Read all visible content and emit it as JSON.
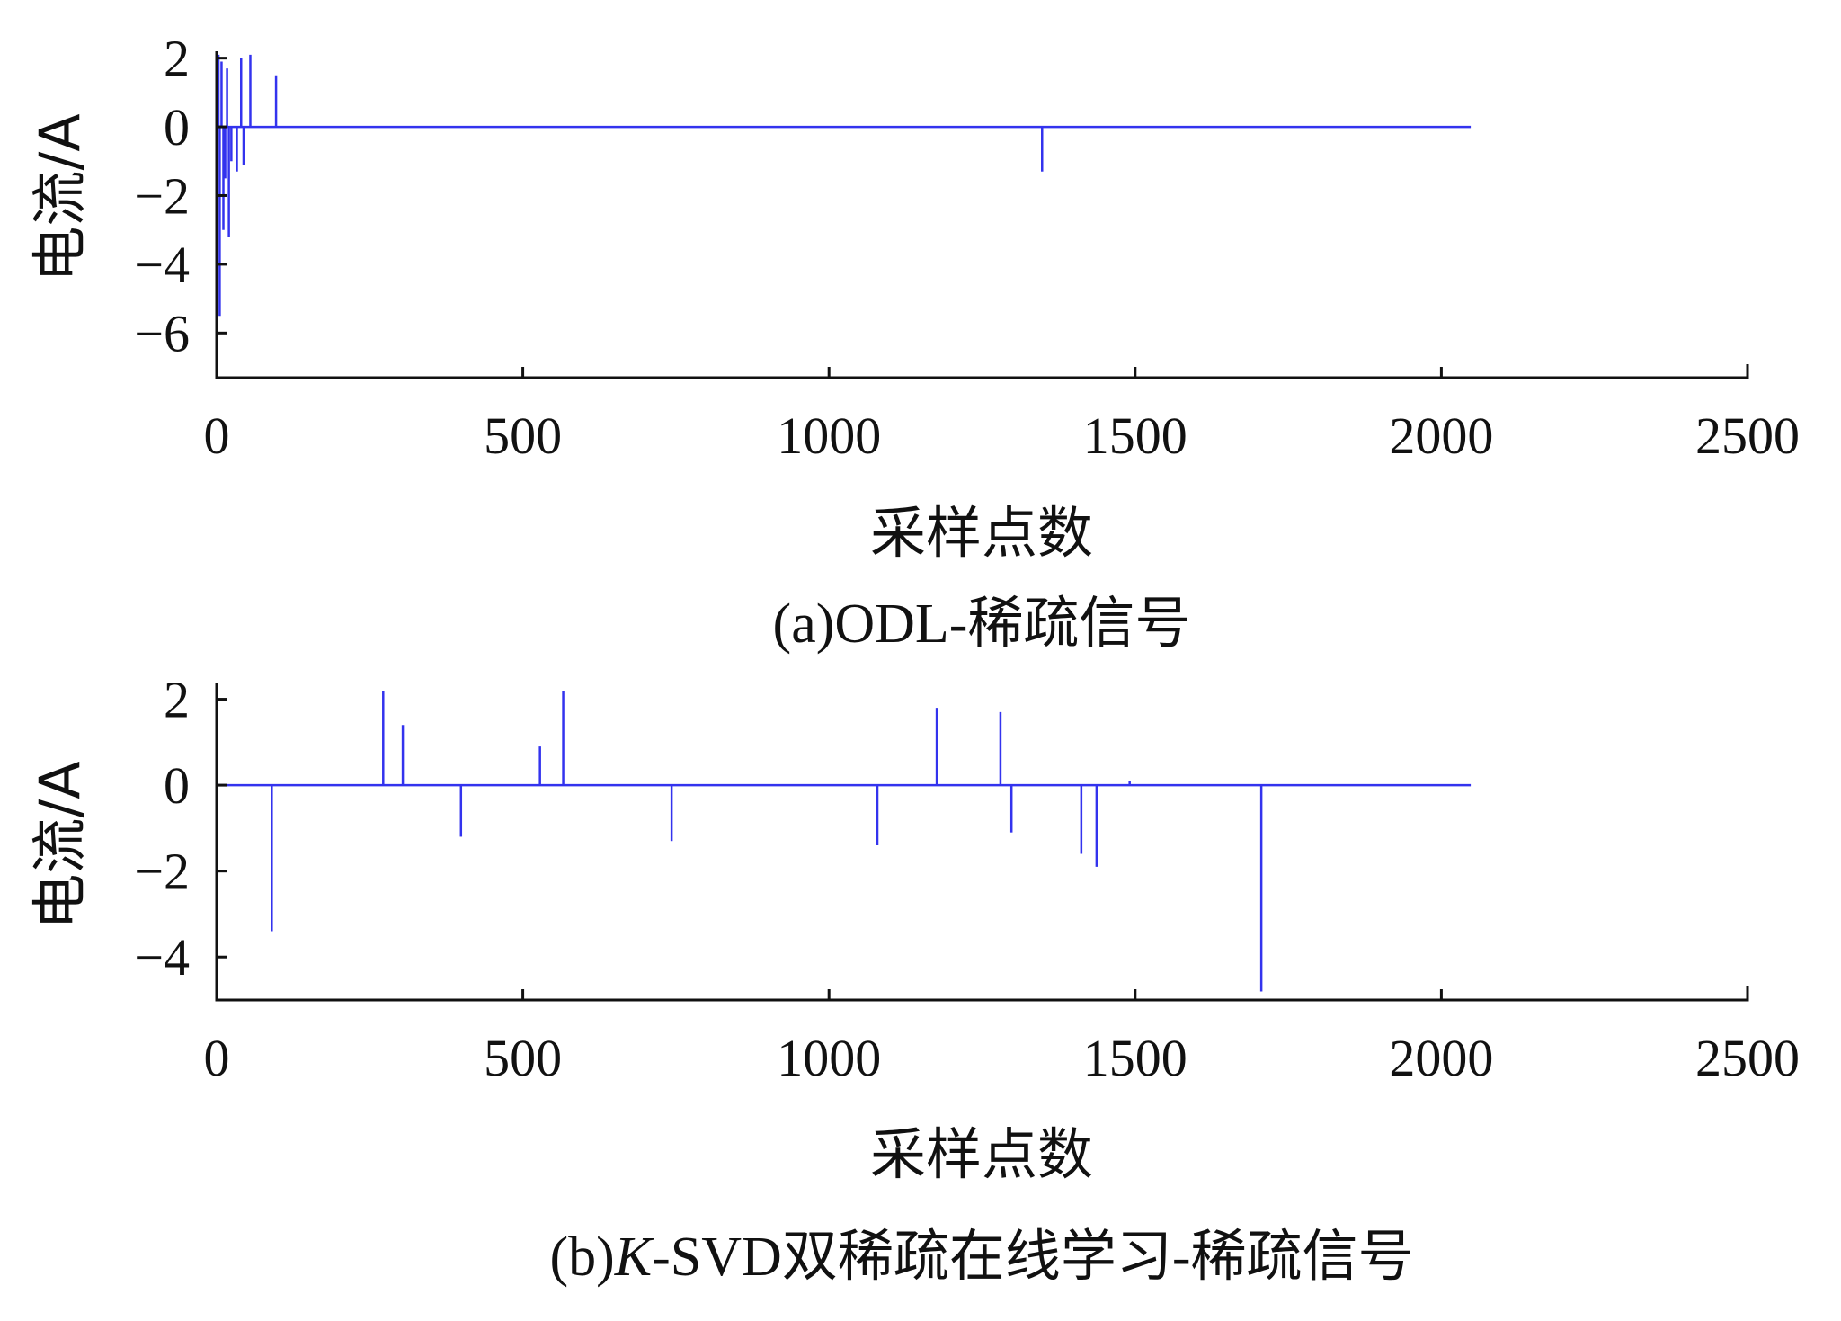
{
  "series_color": "#3333ee",
  "chart_data": [
    {
      "type": "line",
      "subtitle": "(a)ODL-稀疏信号",
      "xlabel": "采样点数",
      "ylabel": "电流/A",
      "xlim": [
        0,
        2500
      ],
      "ylim": [
        -7.3,
        2.2
      ],
      "xticks": [
        0,
        500,
        1000,
        1500,
        2000,
        2500
      ],
      "yticks": [
        2,
        0,
        -2,
        -4,
        -6
      ],
      "grid": false,
      "signal_length": 2048,
      "spikes": [
        {
          "x": 1,
          "y": -7.3
        },
        {
          "x": 3,
          "y": 2.1
        },
        {
          "x": 5,
          "y": -5.5
        },
        {
          "x": 8,
          "y": 1.9
        },
        {
          "x": 11,
          "y": -3.0
        },
        {
          "x": 14,
          "y": -1.5
        },
        {
          "x": 17,
          "y": 1.7
        },
        {
          "x": 20,
          "y": -3.2
        },
        {
          "x": 24,
          "y": -1.0
        },
        {
          "x": 33,
          "y": -1.3
        },
        {
          "x": 40,
          "y": 2.0
        },
        {
          "x": 44,
          "y": -1.1
        },
        {
          "x": 55,
          "y": 2.1
        },
        {
          "x": 97,
          "y": 1.5
        },
        {
          "x": 1348,
          "y": -1.3
        }
      ]
    },
    {
      "type": "line",
      "subtitle_prefix": "(b)",
      "subtitle_italic": "K",
      "subtitle_suffix": "-SVD双稀疏在线学习-稀疏信号",
      "xlabel": "采样点数",
      "ylabel": "电流/A",
      "xlim": [
        0,
        2500
      ],
      "ylim": [
        -5,
        2.2
      ],
      "xticks": [
        0,
        500,
        1000,
        1500,
        2000,
        2500
      ],
      "yticks": [
        2,
        0,
        -2,
        -4
      ],
      "grid": false,
      "signal_length": 2048,
      "spikes": [
        {
          "x": 90,
          "y": -3.4
        },
        {
          "x": 272,
          "y": 2.2
        },
        {
          "x": 304,
          "y": 1.4
        },
        {
          "x": 399,
          "y": -1.2
        },
        {
          "x": 528,
          "y": 0.9
        },
        {
          "x": 566,
          "y": 2.2
        },
        {
          "x": 743,
          "y": -1.3
        },
        {
          "x": 1079,
          "y": -1.4
        },
        {
          "x": 1176,
          "y": 1.8
        },
        {
          "x": 1280,
          "y": 1.7
        },
        {
          "x": 1298,
          "y": -1.1
        },
        {
          "x": 1412,
          "y": -1.6
        },
        {
          "x": 1437,
          "y": -1.9
        },
        {
          "x": 1491,
          "y": 0.1
        },
        {
          "x": 1706,
          "y": -4.8
        }
      ]
    }
  ]
}
